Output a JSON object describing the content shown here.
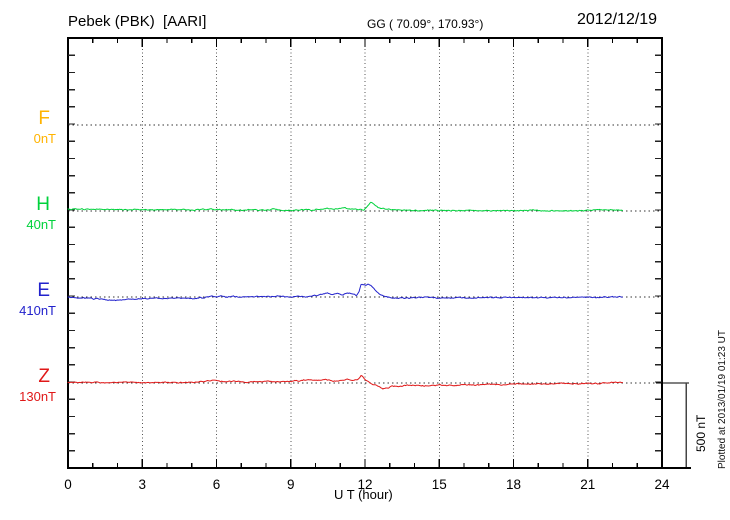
{
  "header": {
    "station": "Pebek (PBK)  [AARI]",
    "coordinates": "GG ( 70.09°, 170.93°)",
    "date": "2012/12/19"
  },
  "x_axis": {
    "title": "U T (hour)",
    "ticks": [
      0,
      3,
      6,
      9,
      12,
      15,
      18,
      21,
      24
    ]
  },
  "scale_bar": {
    "label": "500 nT",
    "value_nT": 500
  },
  "footer": {
    "plotted_at": "Plotted at 2013/01/19 01:23 UT"
  },
  "chart_data": {
    "type": "line",
    "title": "Pebek (PBK)  [AARI]",
    "xlabel": "U T (hour)",
    "x_range": [
      0,
      24
    ],
    "grid_hours": [
      3,
      6,
      9,
      12,
      15,
      18,
      21
    ],
    "tick_step_nT": 100,
    "data_end_hour": 22.4,
    "legend_position": "left",
    "grid": "dotted",
    "series": [
      {
        "name": "F",
        "baseline_label": "0nT",
        "color": "#FFB300",
        "points": []
      },
      {
        "name": "H",
        "baseline_label": "40nT",
        "color": "#00D23C",
        "points": [
          [
            0,
            12
          ],
          [
            0.5,
            11
          ],
          [
            1,
            10
          ],
          [
            1.5,
            9
          ],
          [
            2,
            8
          ],
          [
            2.5,
            9
          ],
          [
            3,
            8
          ],
          [
            3.5,
            7
          ],
          [
            4,
            6
          ],
          [
            4.5,
            8
          ],
          [
            5,
            8
          ],
          [
            5.5,
            9
          ],
          [
            6,
            10
          ],
          [
            6.3,
            6
          ],
          [
            6.6,
            8
          ],
          [
            7,
            6
          ],
          [
            7.5,
            7
          ],
          [
            8,
            4
          ],
          [
            8.3,
            9
          ],
          [
            8.6,
            5
          ],
          [
            9,
            4
          ],
          [
            9.4,
            7
          ],
          [
            9.8,
            5
          ],
          [
            10.2,
            10
          ],
          [
            10.5,
            16
          ],
          [
            10.7,
            9
          ],
          [
            11,
            14
          ],
          [
            11.2,
            18
          ],
          [
            11.4,
            10
          ],
          [
            11.6,
            13
          ],
          [
            11.8,
            8
          ],
          [
            11.95,
            6
          ],
          [
            12.1,
            28
          ],
          [
            12.25,
            50
          ],
          [
            12.4,
            32
          ],
          [
            12.55,
            20
          ],
          [
            12.7,
            14
          ],
          [
            12.9,
            10
          ],
          [
            13.1,
            7
          ],
          [
            13.4,
            4
          ],
          [
            13.7,
            6
          ],
          [
            14,
            3
          ],
          [
            14.5,
            5
          ],
          [
            15,
            2
          ],
          [
            15.5,
            4
          ],
          [
            16,
            2
          ],
          [
            16.5,
            3
          ],
          [
            17,
            2
          ],
          [
            17.5,
            4
          ],
          [
            18,
            2
          ],
          [
            18.5,
            3
          ],
          [
            19,
            2
          ],
          [
            19.5,
            3
          ],
          [
            20,
            1
          ],
          [
            20.5,
            0
          ],
          [
            21,
            4
          ],
          [
            21.3,
            8
          ],
          [
            21.6,
            5
          ],
          [
            21.9,
            7
          ],
          [
            22.1,
            5
          ],
          [
            22.4,
            5
          ]
        ]
      },
      {
        "name": "E",
        "baseline_label": "410nT",
        "color": "#2222CC",
        "points": [
          [
            0,
            0
          ],
          [
            0.5,
            -6
          ],
          [
            1,
            -10
          ],
          [
            1.5,
            -16
          ],
          [
            2,
            -18
          ],
          [
            2.5,
            -14
          ],
          [
            3,
            -10
          ],
          [
            3.5,
            -7
          ],
          [
            4,
            -9
          ],
          [
            4.5,
            -6
          ],
          [
            5,
            -8
          ],
          [
            5.5,
            -4
          ],
          [
            5.8,
            6
          ],
          [
            6,
            2
          ],
          [
            6.2,
            8
          ],
          [
            6.4,
            1
          ],
          [
            6.7,
            5
          ],
          [
            7,
            1
          ],
          [
            7.5,
            3
          ],
          [
            8,
            0
          ],
          [
            8.5,
            4
          ],
          [
            9,
            1
          ],
          [
            9.3,
            5
          ],
          [
            9.6,
            1
          ],
          [
            10,
            7
          ],
          [
            10.3,
            18
          ],
          [
            10.5,
            24
          ],
          [
            10.7,
            15
          ],
          [
            10.9,
            21
          ],
          [
            11.1,
            12
          ],
          [
            11.3,
            24
          ],
          [
            11.5,
            17
          ],
          [
            11.65,
            7
          ],
          [
            11.75,
            30
          ],
          [
            11.85,
            76
          ],
          [
            12,
            68
          ],
          [
            12.15,
            73
          ],
          [
            12.3,
            58
          ],
          [
            12.45,
            36
          ],
          [
            12.6,
            18
          ],
          [
            12.8,
            4
          ],
          [
            13,
            -4
          ],
          [
            13.2,
            -9
          ],
          [
            13.4,
            -6
          ],
          [
            13.7,
            -8
          ],
          [
            14,
            -5
          ],
          [
            14.5,
            -2
          ],
          [
            15,
            -5
          ],
          [
            15.5,
            -7
          ],
          [
            16,
            -4
          ],
          [
            16.5,
            -6
          ],
          [
            17,
            -3
          ],
          [
            17.5,
            -5
          ],
          [
            18,
            -2
          ],
          [
            18.5,
            -4
          ],
          [
            19,
            -3
          ],
          [
            19.5,
            -1
          ],
          [
            20,
            -3
          ],
          [
            20.5,
            -1
          ],
          [
            21,
            -2
          ],
          [
            21.5,
            -3
          ],
          [
            22,
            1
          ],
          [
            22.4,
            0
          ]
        ]
      },
      {
        "name": "Z",
        "baseline_label": "130nT",
        "color": "#E01818",
        "points": [
          [
            0,
            4
          ],
          [
            0.5,
            3
          ],
          [
            1,
            4
          ],
          [
            1.5,
            2
          ],
          [
            2,
            3
          ],
          [
            2.5,
            4
          ],
          [
            3,
            2
          ],
          [
            3.5,
            3
          ],
          [
            4,
            4
          ],
          [
            4.5,
            3
          ],
          [
            5,
            4
          ],
          [
            5.5,
            7
          ],
          [
            5.9,
            16
          ],
          [
            6.1,
            9
          ],
          [
            6.4,
            7
          ],
          [
            6.7,
            11
          ],
          [
            7,
            8
          ],
          [
            7.3,
            6
          ],
          [
            7.6,
            9
          ],
          [
            8,
            8
          ],
          [
            8.5,
            7
          ],
          [
            9,
            9
          ],
          [
            9.5,
            17
          ],
          [
            9.8,
            20
          ],
          [
            10.1,
            15
          ],
          [
            10.4,
            18
          ],
          [
            10.7,
            13
          ],
          [
            11,
            16
          ],
          [
            11.3,
            20
          ],
          [
            11.5,
            14
          ],
          [
            11.7,
            18
          ],
          [
            11.85,
            46
          ],
          [
            12,
            18
          ],
          [
            12.15,
            6
          ],
          [
            12.3,
            -8
          ],
          [
            12.5,
            -15
          ],
          [
            12.7,
            -36
          ],
          [
            12.9,
            -28
          ],
          [
            13.1,
            -18
          ],
          [
            13.4,
            -21
          ],
          [
            13.7,
            -14
          ],
          [
            14,
            -13
          ],
          [
            14.5,
            -17
          ],
          [
            15,
            -11
          ],
          [
            15.5,
            -14
          ],
          [
            16,
            -9
          ],
          [
            16.5,
            -12
          ],
          [
            17,
            -7
          ],
          [
            17.5,
            -9
          ],
          [
            18,
            -5
          ],
          [
            18.5,
            -7
          ],
          [
            19,
            -4
          ],
          [
            19.5,
            -6
          ],
          [
            20,
            -3
          ],
          [
            20.5,
            -5
          ],
          [
            21,
            -2
          ],
          [
            21.5,
            -4
          ],
          [
            22,
            2
          ],
          [
            22.4,
            4
          ]
        ]
      }
    ]
  }
}
